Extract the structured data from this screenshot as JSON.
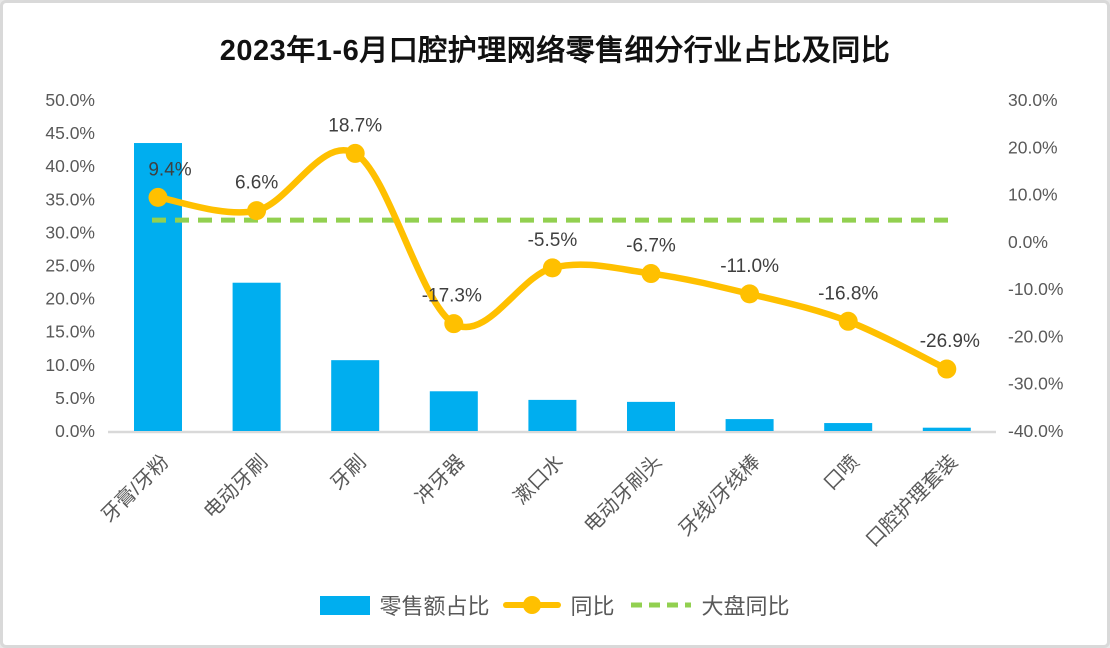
{
  "title": "2023年1-6月口腔护理网络零售细分行业占比及同比",
  "chart_data": {
    "type": "bar+line combo",
    "title": "2023年1-6月口腔护理网络零售细分行业占比及同比",
    "categories": [
      "牙膏/牙粉",
      "电动牙刷",
      "牙刷",
      "冲牙器",
      "漱口水",
      "电动牙刷头",
      "牙线/牙线棒",
      "口喷",
      "口腔护理套装"
    ],
    "series": [
      {
        "name": "零售额占比",
        "type": "bar",
        "axis": "left",
        "color": "#00AEEF",
        "values": [
          43.5,
          22.4,
          10.7,
          6.0,
          4.7,
          4.4,
          1.8,
          1.2,
          0.5
        ]
      },
      {
        "name": "同比",
        "type": "line",
        "axis": "right",
        "color": "#FFC000",
        "smooth": true,
        "values": [
          9.4,
          6.6,
          18.7,
          -17.3,
          -5.5,
          -6.7,
          -11.0,
          -16.8,
          -26.9
        ],
        "labels": [
          "9.4%",
          "6.6%",
          "18.7%",
          "-17.3%",
          "-5.5%",
          "-6.7%",
          "-11.0%",
          "-16.8%",
          "-26.9%"
        ]
      },
      {
        "name": "大盘同比",
        "type": "dashed-reference-line",
        "axis": "right",
        "color": "#92D050",
        "value": 4.6
      }
    ],
    "left_axis": {
      "min": 0,
      "max": 50,
      "step": 5,
      "ticks": [
        "50.0%",
        "45.0%",
        "40.0%",
        "35.0%",
        "30.0%",
        "25.0%",
        "20.0%",
        "15.0%",
        "10.0%",
        "5.0%",
        "0.0%"
      ]
    },
    "right_axis": {
      "min": -40,
      "max": 30,
      "step": 10,
      "ticks": [
        "30.0%",
        "20.0%",
        "10.0%",
        "0.0%",
        "-10.0%",
        "-20.0%",
        "-30.0%",
        "-40.0%"
      ]
    },
    "grid": false,
    "legend_position": "bottom",
    "colors": {
      "axis_text": "#595959",
      "data_label": "#3F3F3F",
      "baseline": "#D9D9D9",
      "title": "#111111"
    }
  }
}
